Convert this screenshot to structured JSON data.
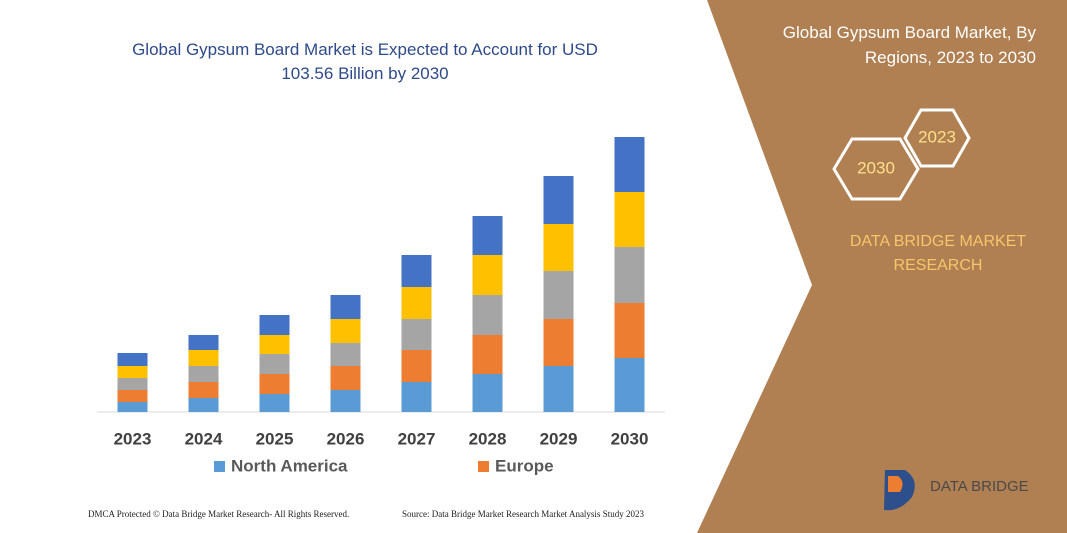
{
  "chart_data": {
    "type": "stacked_bar",
    "title": "Global Gypsum Board Market is Expected to Account for USD 103.56 Billion by 2030",
    "categories": [
      "2023",
      "2024",
      "2025",
      "2026",
      "2027",
      "2028",
      "2029",
      "2030"
    ],
    "series": [
      {
        "name": "North America",
        "color": "#5b9bd5",
        "values": [
          10,
          14,
          18,
          22,
          30,
          38,
          46,
          54
        ]
      },
      {
        "name": "Europe",
        "color": "#ed7d31",
        "values": [
          12,
          16,
          20,
          24,
          32,
          39,
          47,
          55
        ]
      },
      {
        "color": "#a5a5a5",
        "values": [
          12,
          16,
          20,
          23,
          31,
          40,
          48,
          56
        ]
      },
      {
        "color": "#ffc000",
        "values": [
          12,
          16,
          19,
          24,
          32,
          40,
          47,
          55
        ]
      },
      {
        "color": "#4472c4",
        "values": [
          13,
          15,
          20,
          24,
          32,
          39,
          48,
          55
        ]
      }
    ],
    "ylim": [
      0,
      300
    ]
  },
  "panel": {
    "title": "Global Gypsum Board Market, By Regions, 2023 to 2030",
    "hexagons": [
      "2023",
      "2030"
    ],
    "brand": "DATA BRIDGE MARKET RESEARCH"
  },
  "logo": "DATA BRIDGE",
  "footer": {
    "left": "DMCA Protected © Data Bridge Market Research- All Rights Reserved.",
    "right": "Source: Data Bridge Market Research  Market Analysis Study 2023"
  }
}
